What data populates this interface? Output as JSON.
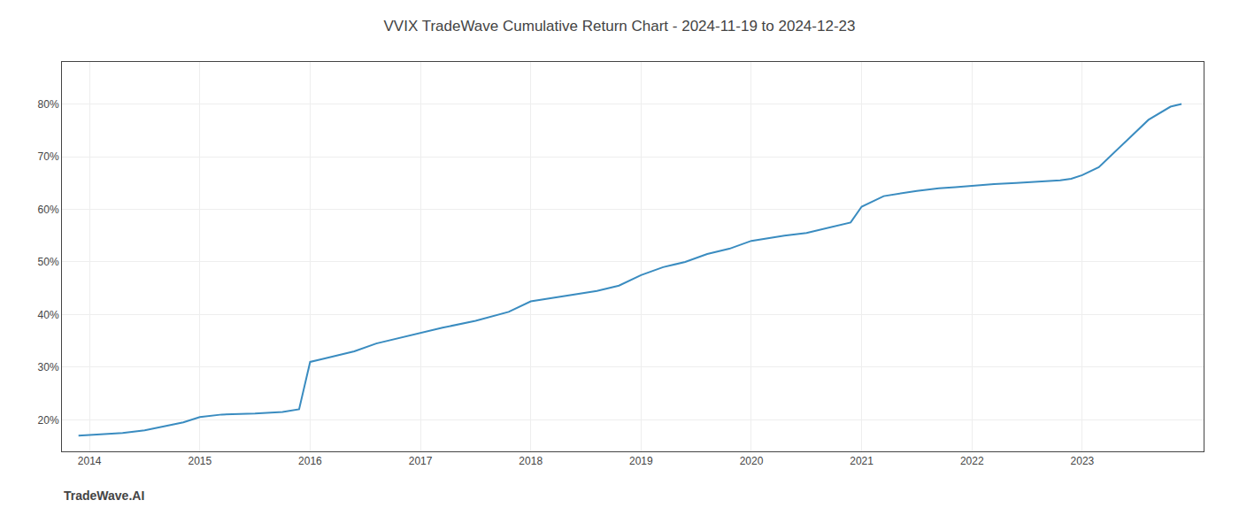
{
  "chart_data": {
    "type": "line",
    "title": "VVIX TradeWave Cumulative Return Chart - 2024-11-19 to 2024-12-23",
    "annotations": [
      "TradeWave.AI"
    ],
    "x": [
      2013.9,
      2014.0,
      2014.15,
      2014.3,
      2014.5,
      2014.7,
      2014.85,
      2015.0,
      2015.1,
      2015.2,
      2015.5,
      2015.75,
      2015.9,
      2016.0,
      2016.1,
      2016.2,
      2016.4,
      2016.6,
      2016.8,
      2017.0,
      2017.2,
      2017.5,
      2017.8,
      2018.0,
      2018.2,
      2018.4,
      2018.6,
      2018.8,
      2019.0,
      2019.2,
      2019.4,
      2019.6,
      2019.8,
      2020.0,
      2020.15,
      2020.3,
      2020.5,
      2020.7,
      2020.9,
      2021.0,
      2021.2,
      2021.5,
      2021.7,
      2021.85,
      2022.0,
      2022.2,
      2022.4,
      2022.6,
      2022.8,
      2022.9,
      2023.0,
      2023.15,
      2023.4,
      2023.6,
      2023.8,
      2023.9
    ],
    "values": [
      17.0,
      17.1,
      17.3,
      17.5,
      18.0,
      18.8,
      19.5,
      20.5,
      20.8,
      21.0,
      21.2,
      21.5,
      22.0,
      31.0,
      31.5,
      32.0,
      33.0,
      34.5,
      35.5,
      36.5,
      37.5,
      38.8,
      40.5,
      42.5,
      43.2,
      43.8,
      44.5,
      45.5,
      47.5,
      49.0,
      50.0,
      51.5,
      52.5,
      54.0,
      54.5,
      55.0,
      55.5,
      56.5,
      57.5,
      60.5,
      62.5,
      63.5,
      64.0,
      64.2,
      64.5,
      64.8,
      65.0,
      65.2,
      65.5,
      65.8,
      66.5,
      68.0,
      73.0,
      77.0,
      79.5,
      80.0
    ],
    "color": "#3a8cc0",
    "xlim": [
      2013.75,
      2024.1
    ],
    "xticks": [
      2014,
      2015,
      2016,
      2017,
      2018,
      2019,
      2020,
      2021,
      2022,
      2023
    ],
    "ylim": [
      14,
      88
    ],
    "yticks": [
      {
        "value": 20,
        "label": "20%"
      },
      {
        "value": 30,
        "label": "30%"
      },
      {
        "value": 40,
        "label": "40%"
      },
      {
        "value": 50,
        "label": "50%"
      },
      {
        "value": 60,
        "label": "60%"
      },
      {
        "value": 70,
        "label": "70%"
      },
      {
        "value": 80,
        "label": "80%"
      }
    ],
    "grid": true
  }
}
